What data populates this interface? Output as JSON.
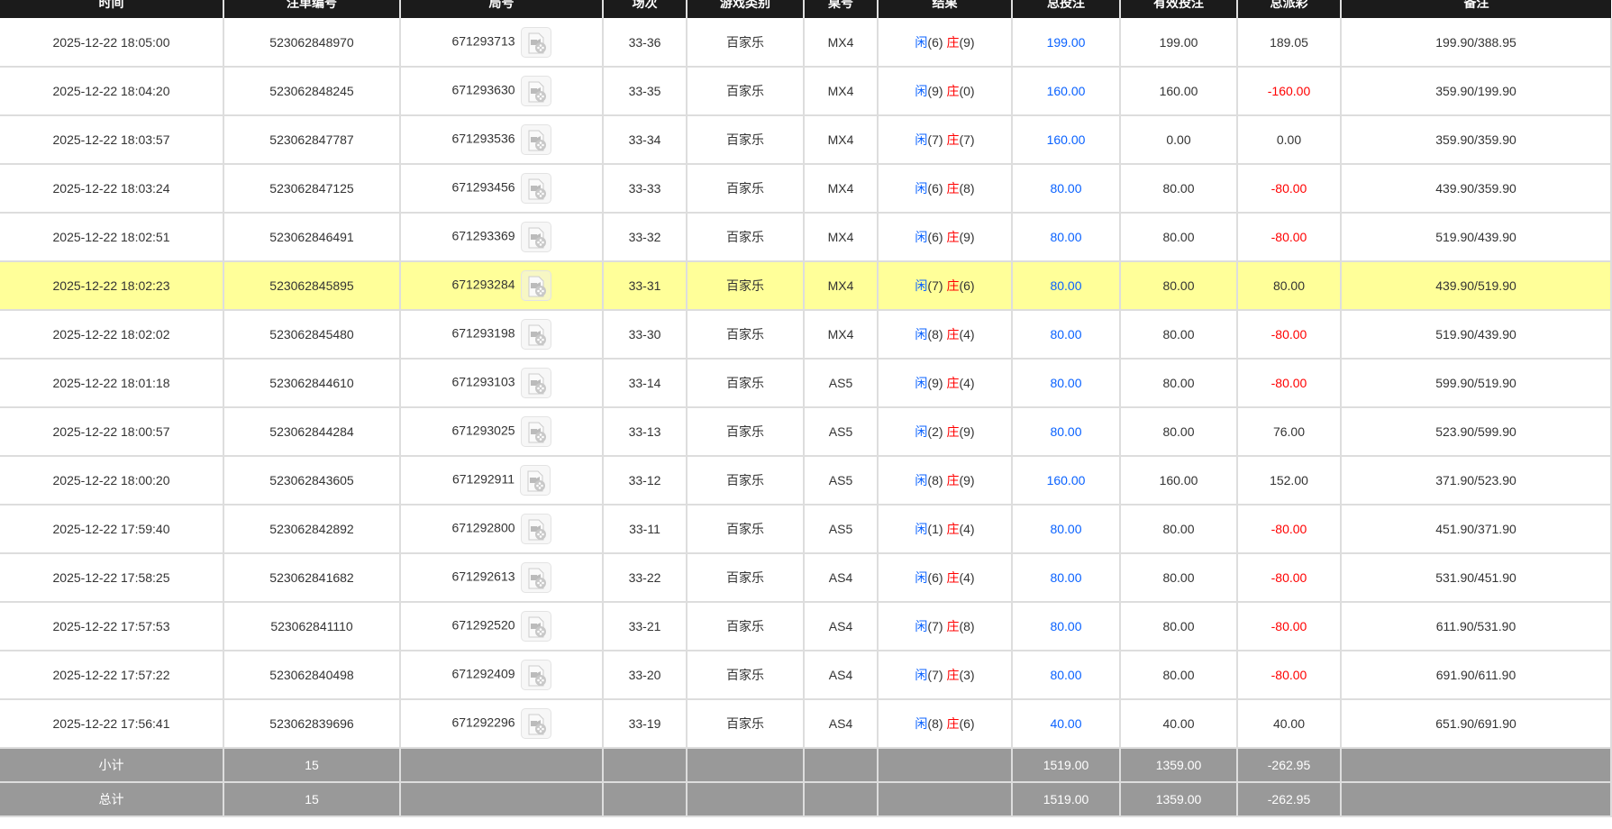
{
  "headers": [
    "时间",
    "注单编号",
    "局号",
    "场次",
    "游戏类别",
    "桌号",
    "结果",
    "总投注",
    "有效投注",
    "总派彩",
    "备注"
  ],
  "result_labels": {
    "player": "闲",
    "banker": "庄"
  },
  "rows": [
    {
      "time": "2025-12-22 18:05:00",
      "bet_id": "523062848970",
      "round": "671293713",
      "shoe": "33-36",
      "game": "百家乐",
      "table": "MX4",
      "p": "(6)",
      "b": "(9)",
      "bet": "199.00",
      "valid": "199.00",
      "payout": "189.05",
      "payout_neg": false,
      "note": "199.90/388.95"
    },
    {
      "time": "2025-12-22 18:04:20",
      "bet_id": "523062848245",
      "round": "671293630",
      "shoe": "33-35",
      "game": "百家乐",
      "table": "MX4",
      "p": "(9)",
      "b": "(0)",
      "bet": "160.00",
      "valid": "160.00",
      "payout": "-160.00",
      "payout_neg": true,
      "note": "359.90/199.90"
    },
    {
      "time": "2025-12-22 18:03:57",
      "bet_id": "523062847787",
      "round": "671293536",
      "shoe": "33-34",
      "game": "百家乐",
      "table": "MX4",
      "p": "(7)",
      "b": "(7)",
      "bet": "160.00",
      "valid": "0.00",
      "payout": "0.00",
      "payout_neg": false,
      "note": "359.90/359.90"
    },
    {
      "time": "2025-12-22 18:03:24",
      "bet_id": "523062847125",
      "round": "671293456",
      "shoe": "33-33",
      "game": "百家乐",
      "table": "MX4",
      "p": "(6)",
      "b": "(8)",
      "bet": "80.00",
      "valid": "80.00",
      "payout": "-80.00",
      "payout_neg": true,
      "note": "439.90/359.90"
    },
    {
      "time": "2025-12-22 18:02:51",
      "bet_id": "523062846491",
      "round": "671293369",
      "shoe": "33-32",
      "game": "百家乐",
      "table": "MX4",
      "p": "(6)",
      "b": "(9)",
      "bet": "80.00",
      "valid": "80.00",
      "payout": "-80.00",
      "payout_neg": true,
      "note": "519.90/439.90"
    },
    {
      "time": "2025-12-22 18:02:23",
      "bet_id": "523062845895",
      "round": "671293284",
      "shoe": "33-31",
      "game": "百家乐",
      "table": "MX4",
      "p": "(7)",
      "b": "(6)",
      "bet": "80.00",
      "valid": "80.00",
      "payout": "80.00",
      "payout_neg": false,
      "note": "439.90/519.90",
      "highlight": true
    },
    {
      "time": "2025-12-22 18:02:02",
      "bet_id": "523062845480",
      "round": "671293198",
      "shoe": "33-30",
      "game": "百家乐",
      "table": "MX4",
      "p": "(8)",
      "b": "(4)",
      "bet": "80.00",
      "valid": "80.00",
      "payout": "-80.00",
      "payout_neg": true,
      "note": "519.90/439.90"
    },
    {
      "time": "2025-12-22 18:01:18",
      "bet_id": "523062844610",
      "round": "671293103",
      "shoe": "33-14",
      "game": "百家乐",
      "table": "AS5",
      "p": "(9)",
      "b": "(4)",
      "bet": "80.00",
      "valid": "80.00",
      "payout": "-80.00",
      "payout_neg": true,
      "note": "599.90/519.90"
    },
    {
      "time": "2025-12-22 18:00:57",
      "bet_id": "523062844284",
      "round": "671293025",
      "shoe": "33-13",
      "game": "百家乐",
      "table": "AS5",
      "p": "(2)",
      "b": "(9)",
      "bet": "80.00",
      "valid": "80.00",
      "payout": "76.00",
      "payout_neg": false,
      "note": "523.90/599.90"
    },
    {
      "time": "2025-12-22 18:00:20",
      "bet_id": "523062843605",
      "round": "671292911",
      "shoe": "33-12",
      "game": "百家乐",
      "table": "AS5",
      "p": "(8)",
      "b": "(9)",
      "bet": "160.00",
      "valid": "160.00",
      "payout": "152.00",
      "payout_neg": false,
      "note": "371.90/523.90"
    },
    {
      "time": "2025-12-22 17:59:40",
      "bet_id": "523062842892",
      "round": "671292800",
      "shoe": "33-11",
      "game": "百家乐",
      "table": "AS5",
      "p": "(1)",
      "b": "(4)",
      "bet": "80.00",
      "valid": "80.00",
      "payout": "-80.00",
      "payout_neg": true,
      "note": "451.90/371.90"
    },
    {
      "time": "2025-12-22 17:58:25",
      "bet_id": "523062841682",
      "round": "671292613",
      "shoe": "33-22",
      "game": "百家乐",
      "table": "AS4",
      "p": "(6)",
      "b": "(4)",
      "bet": "80.00",
      "valid": "80.00",
      "payout": "-80.00",
      "payout_neg": true,
      "note": "531.90/451.90"
    },
    {
      "time": "2025-12-22 17:57:53",
      "bet_id": "523062841110",
      "round": "671292520",
      "shoe": "33-21",
      "game": "百家乐",
      "table": "AS4",
      "p": "(7)",
      "b": "(8)",
      "bet": "80.00",
      "valid": "80.00",
      "payout": "-80.00",
      "payout_neg": true,
      "note": "611.90/531.90"
    },
    {
      "time": "2025-12-22 17:57:22",
      "bet_id": "523062840498",
      "round": "671292409",
      "shoe": "33-20",
      "game": "百家乐",
      "table": "AS4",
      "p": "(7)",
      "b": "(3)",
      "bet": "80.00",
      "valid": "80.00",
      "payout": "-80.00",
      "payout_neg": true,
      "note": "691.90/611.90"
    },
    {
      "time": "2025-12-22 17:56:41",
      "bet_id": "523062839696",
      "round": "671292296",
      "shoe": "33-19",
      "game": "百家乐",
      "table": "AS4",
      "p": "(8)",
      "b": "(6)",
      "bet": "40.00",
      "valid": "40.00",
      "payout": "40.00",
      "payout_neg": false,
      "note": "651.90/691.90"
    }
  ],
  "subtotal": {
    "label": "小计",
    "count": "15",
    "bet": "1519.00",
    "valid": "1359.00",
    "payout": "-262.95"
  },
  "total": {
    "label": "总计",
    "count": "15",
    "bet": "1519.00",
    "valid": "1359.00",
    "payout": "-262.95"
  },
  "colors": {
    "header_bg": "#1b1b1b",
    "highlight": "#ffff99",
    "player": "#0a62ff",
    "banker": "#ff0000",
    "summary_bg": "#999999"
  }
}
